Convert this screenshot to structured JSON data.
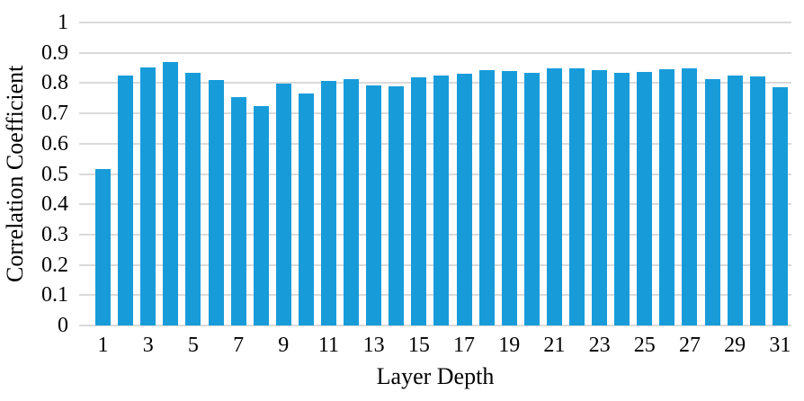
{
  "chart_data": {
    "type": "bar",
    "title": "",
    "xlabel": "Layer Depth",
    "ylabel": "Correlation Coefficient",
    "categories": [
      1,
      2,
      3,
      4,
      5,
      6,
      7,
      8,
      9,
      10,
      11,
      12,
      13,
      14,
      15,
      16,
      17,
      18,
      19,
      20,
      21,
      22,
      23,
      24,
      25,
      26,
      27,
      28,
      29,
      30,
      31
    ],
    "values": [
      0.515,
      0.825,
      0.852,
      0.868,
      0.833,
      0.81,
      0.753,
      0.724,
      0.797,
      0.766,
      0.807,
      0.813,
      0.791,
      0.79,
      0.82,
      0.824,
      0.83,
      0.843,
      0.841,
      0.834,
      0.848,
      0.848,
      0.843,
      0.834,
      0.837,
      0.847,
      0.85,
      0.812,
      0.824,
      0.821,
      0.786
    ],
    "x_tick_labels": [
      "1",
      "3",
      "5",
      "7",
      "9",
      "11",
      "13",
      "15",
      "17",
      "19",
      "21",
      "23",
      "25",
      "27",
      "29",
      "31"
    ],
    "y_ticks": [
      "0",
      "0.1",
      "0.2",
      "0.3",
      "0.4",
      "0.5",
      "0.6",
      "0.7",
      "0.8",
      "0.9",
      "1"
    ],
    "ylim": [
      0,
      1
    ],
    "grid": true,
    "legend": "none",
    "bar_color": "#189CD9",
    "gridline_color": "#DADADA",
    "text_color": "#000000"
  }
}
